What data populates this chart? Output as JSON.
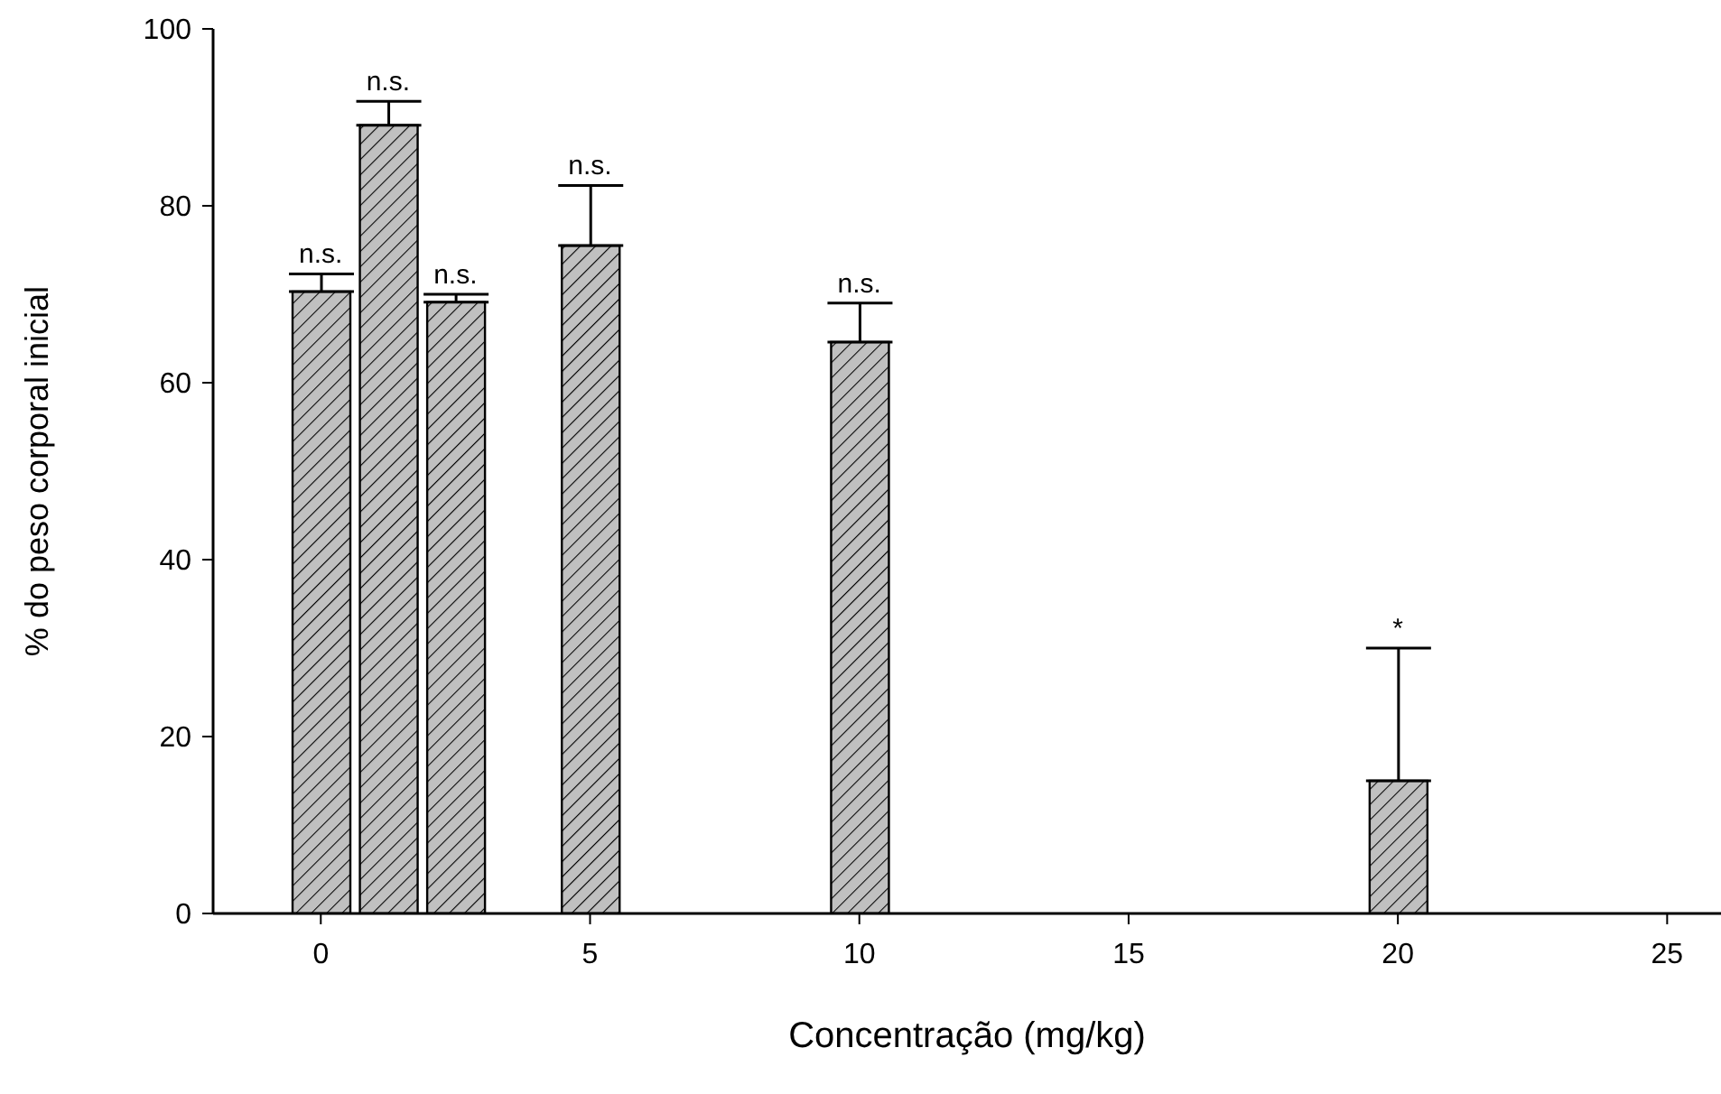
{
  "chart_data": {
    "type": "bar",
    "xlabel": "Concentração (mg/kg)",
    "ylabel": "% do peso corporal inicial",
    "x": [
      0,
      1.25,
      2.5,
      5,
      10,
      20
    ],
    "values": [
      70.3,
      89.1,
      69.1,
      75.5,
      64.6,
      15.0
    ],
    "errors": [
      [
        70.3,
        72.3
      ],
      [
        89.1,
        91.8
      ],
      [
        69.1,
        70.0
      ],
      [
        75.5,
        82.3
      ],
      [
        64.6,
        69.0
      ],
      [
        15.0,
        30.0
      ]
    ],
    "color": "#c0c0c0",
    "xlim": [
      -2,
      26
    ],
    "xticks": [
      0,
      5,
      10,
      15,
      20,
      25
    ],
    "ylim": [
      0,
      100
    ],
    "yticks": [
      0,
      20,
      40,
      60,
      80,
      100
    ],
    "annotations": [
      "n.s.",
      "n.s.",
      "n.s.",
      "n.s.",
      "n.s.",
      "*"
    ]
  }
}
